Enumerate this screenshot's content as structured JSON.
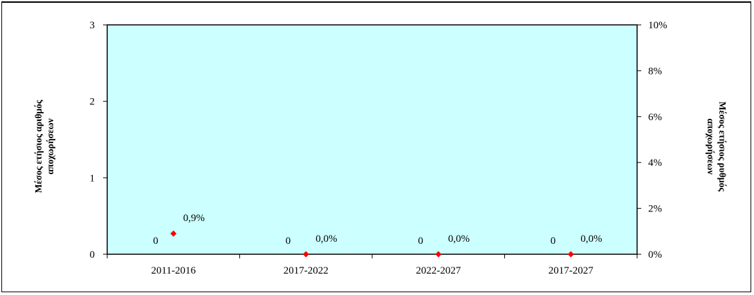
{
  "chart_data": {
    "type": "bar",
    "categories": [
      "2011-2016",
      "2017-2022",
      "2022-2027",
      "2017-2027"
    ],
    "series": [
      {
        "axis": "left",
        "values": [
          0,
          0,
          0,
          0
        ],
        "labels": [
          "0",
          "0",
          "0",
          "0"
        ]
      },
      {
        "axis": "right",
        "values": [
          0.009,
          0.0,
          0.0,
          0.0
        ],
        "labels": [
          "0,9%",
          "0,0%",
          "0,0%",
          "0,0%"
        ],
        "marker": "diamond"
      }
    ],
    "ylabel": "Μέσος ετήσιος αριθμός αποχωρήσεων",
    "ylabel_right": "Μέσος ετήσιος ρυθμός αποχωρήσεων",
    "ylim": [
      0,
      3
    ],
    "ylim_right": [
      0,
      0.1
    ],
    "yticks": [
      "0",
      "1",
      "2",
      "3"
    ],
    "yticks_right": [
      "0%",
      "2%",
      "4%",
      "6%",
      "8%",
      "10%"
    ],
    "grid": false,
    "plot_background": "#ccffff",
    "marker_color": "#ff0000"
  }
}
